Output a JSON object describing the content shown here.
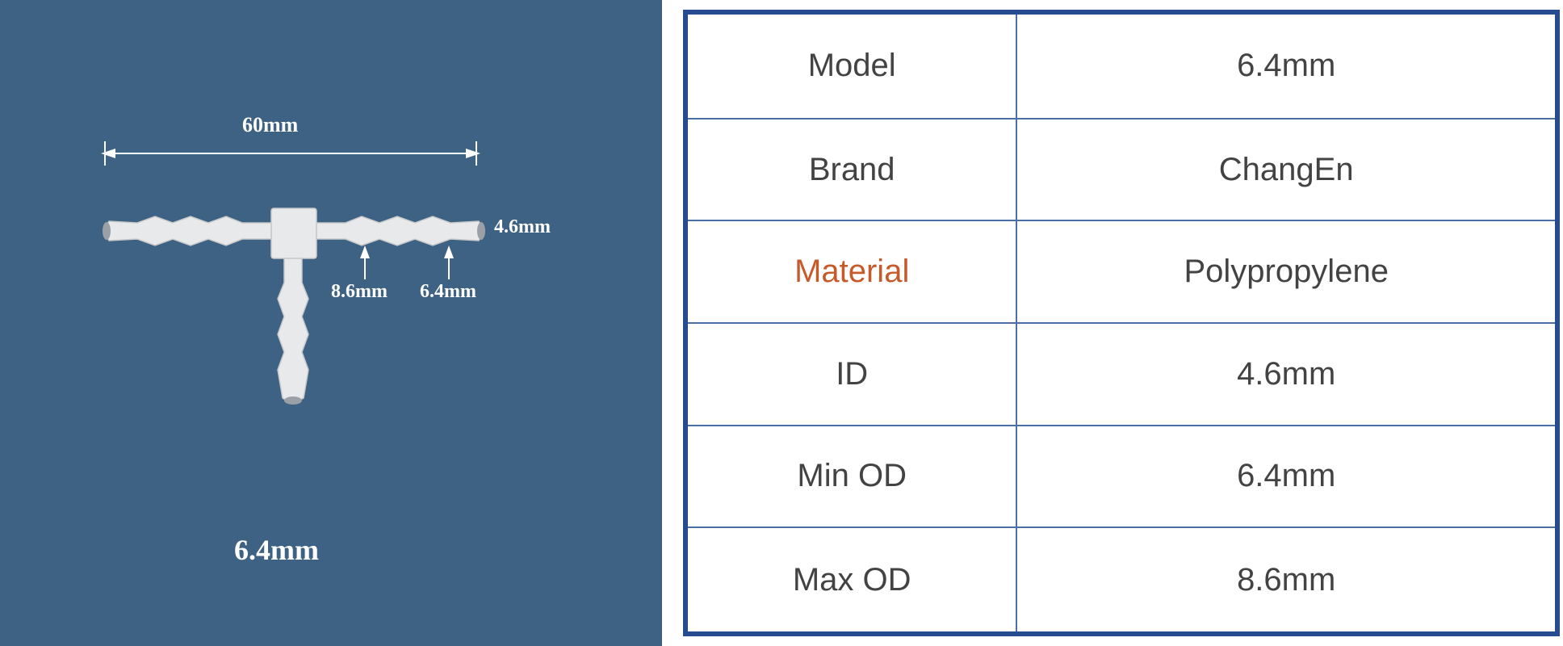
{
  "diagram": {
    "background_color": "#3e6283",
    "text_color": "#ffffff",
    "arrow_color": "#ffffff",
    "connector_fill": "#e8e9ea",
    "connector_stroke": "#c8c9ca",
    "width_label": "60mm",
    "right_tip_label": "4.6mm",
    "barb_max_label": "8.6mm",
    "barb_min_label": "6.4mm",
    "size_title": "6.4mm",
    "width_label_fontsize": 26,
    "annot_fontsize": 24,
    "title_fontsize": 36
  },
  "table": {
    "outer_border_color": "#274b8f",
    "outer_border_width": 6,
    "inner_border_color": "#4a6fa5",
    "inner_border_width": 2,
    "label_color": "#434343",
    "value_color": "#434343",
    "highlight_color": "#c65a2a",
    "fontsize": 40,
    "rows": [
      {
        "label": "Model",
        "value": "6.4mm",
        "label_highlight": false
      },
      {
        "label": "Brand",
        "value": "ChangEn",
        "label_highlight": false
      },
      {
        "label": "Material",
        "value": "Polypropylene",
        "label_highlight": true
      },
      {
        "label": "ID",
        "value": "4.6mm",
        "label_highlight": false
      },
      {
        "label": "Min OD",
        "value": "6.4mm",
        "label_highlight": false
      },
      {
        "label": "Max OD",
        "value": "8.6mm",
        "label_highlight": false
      }
    ]
  }
}
